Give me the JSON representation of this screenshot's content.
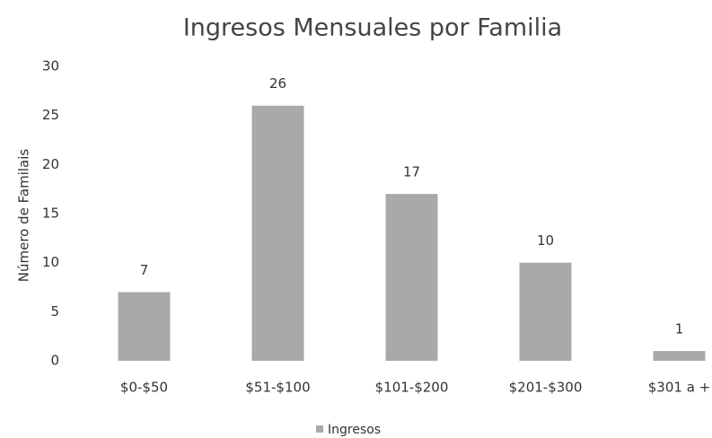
{
  "chart_data": {
    "type": "bar",
    "title": "Ingresos Mensuales por Familia",
    "y_label": "Número de Familais",
    "categories": [
      "$0-$50",
      "$51-$100",
      "$101-$200",
      "$201-$300",
      "$301 a +"
    ],
    "series": [
      {
        "name": "Ingresos",
        "color": "#a9a9a9",
        "values": [
          7,
          26,
          17,
          10,
          1
        ]
      }
    ],
    "ylim": [
      0,
      30
    ],
    "yticks": [
      0,
      5,
      10,
      15,
      20,
      25,
      30
    ],
    "grid": false,
    "legend": "bottom"
  }
}
